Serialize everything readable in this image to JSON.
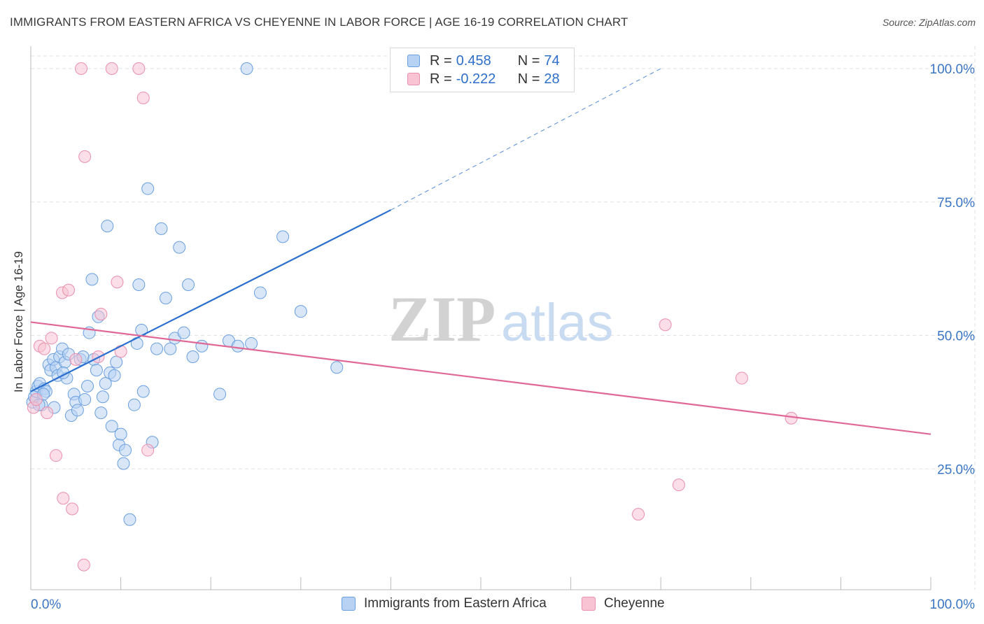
{
  "title": "IMMIGRANTS FROM EASTERN AFRICA VS CHEYENNE IN LABOR FORCE | AGE 16-19 CORRELATION CHART",
  "source": "Source: ZipAtlas.com",
  "watermark": {
    "zip": "ZIP",
    "atlas": "atlas"
  },
  "legend": {
    "rows": [
      {
        "r_label": "R = ",
        "r_value": "0.458",
        "n_label": "N = ",
        "n_value": "74"
      },
      {
        "r_label": "R = ",
        "r_value": "-0.222",
        "n_label": "N = ",
        "n_value": "28"
      }
    ]
  },
  "colors": {
    "series_a_fill": "#b8d2f3",
    "series_a_stroke": "#6a9fdf",
    "series_a_line": "#2a6fd0",
    "series_b_fill": "#f8c3d3",
    "series_b_stroke": "#ea8fac",
    "series_b_line": "#e06896",
    "axis_text": "#3a75c4",
    "grid": "#e2e2e2"
  },
  "chart_data": {
    "type": "scatter",
    "title": "IMMIGRANTS FROM EASTERN AFRICA VS CHEYENNE IN LABOR FORCE | AGE 16-19 CORRELATION CHART",
    "xlabel": "",
    "ylabel": "In Labor Force | Age 16-19",
    "xlim": [
      0,
      100
    ],
    "ylim": [
      0,
      100
    ],
    "x_tick_labels": [
      "0.0%",
      "100.0%"
    ],
    "y_ticks": [
      25,
      50,
      75,
      100
    ],
    "y_tick_labels": [
      "25.0%",
      "50.0%",
      "75.0%",
      "100.0%"
    ],
    "grid": true,
    "legend_position": "top-center",
    "series": [
      {
        "name": "Immigrants from Eastern Africa",
        "r": 0.458,
        "n": 74,
        "trend": {
          "x0": 0,
          "y0": 39.5,
          "x1": 40,
          "y1": 73.5,
          "dashed_to_x": 70,
          "dashed_to_y": 100
        },
        "points": [
          [
            0.2,
            37.5
          ],
          [
            0.4,
            38.5
          ],
          [
            0.6,
            39.5
          ],
          [
            0.8,
            40.5
          ],
          [
            1.0,
            41.0
          ],
          [
            1.2,
            37.0
          ],
          [
            1.5,
            40.0
          ],
          [
            1.7,
            39.5
          ],
          [
            2.0,
            44.5
          ],
          [
            2.2,
            43.5
          ],
          [
            2.5,
            45.5
          ],
          [
            2.8,
            44.0
          ],
          [
            3.0,
            42.5
          ],
          [
            3.2,
            46.0
          ],
          [
            3.5,
            47.5
          ],
          [
            3.8,
            45.0
          ],
          [
            4.0,
            42.0
          ],
          [
            4.2,
            46.5
          ],
          [
            4.5,
            35.0
          ],
          [
            4.8,
            39.0
          ],
          [
            5.0,
            37.5
          ],
          [
            5.2,
            36.0
          ],
          [
            5.5,
            45.5
          ],
          [
            5.8,
            46.0
          ],
          [
            6.0,
            38.0
          ],
          [
            6.3,
            40.5
          ],
          [
            6.5,
            50.5
          ],
          [
            6.8,
            60.5
          ],
          [
            7.0,
            45.5
          ],
          [
            7.3,
            43.5
          ],
          [
            7.5,
            53.5
          ],
          [
            7.8,
            35.5
          ],
          [
            8.0,
            38.5
          ],
          [
            8.3,
            41.0
          ],
          [
            8.5,
            70.5
          ],
          [
            8.8,
            43.0
          ],
          [
            9.0,
            33.0
          ],
          [
            9.3,
            42.5
          ],
          [
            9.5,
            45.0
          ],
          [
            9.8,
            29.5
          ],
          [
            10.0,
            31.5
          ],
          [
            10.3,
            26.0
          ],
          [
            10.5,
            28.5
          ],
          [
            11.0,
            15.5
          ],
          [
            11.5,
            37.0
          ],
          [
            11.8,
            48.5
          ],
          [
            12.0,
            59.5
          ],
          [
            12.3,
            51.0
          ],
          [
            12.5,
            39.5
          ],
          [
            13.0,
            77.5
          ],
          [
            13.5,
            30.0
          ],
          [
            14.0,
            47.5
          ],
          [
            14.5,
            70.0
          ],
          [
            15.0,
            57.0
          ],
          [
            15.5,
            47.5
          ],
          [
            16.0,
            49.5
          ],
          [
            16.5,
            66.5
          ],
          [
            17.0,
            50.5
          ],
          [
            17.5,
            59.5
          ],
          [
            18.0,
            46.0
          ],
          [
            19.0,
            48.0
          ],
          [
            21.0,
            39.0
          ],
          [
            22.0,
            49.0
          ],
          [
            23.0,
            48.0
          ],
          [
            25.5,
            58.0
          ],
          [
            28.0,
            68.5
          ],
          [
            30.0,
            54.5
          ],
          [
            24.5,
            48.5
          ],
          [
            34.0,
            44.0
          ],
          [
            24.0,
            100.0
          ],
          [
            2.6,
            36.5
          ],
          [
            1.4,
            39.0
          ],
          [
            3.6,
            43.0
          ],
          [
            0.9,
            37.0
          ]
        ]
      },
      {
        "name": "Cheyenne",
        "r": -0.222,
        "n": 28,
        "trend": {
          "x0": 0,
          "y0": 52.5,
          "x1": 100,
          "y1": 31.5
        },
        "points": [
          [
            0.3,
            36.5
          ],
          [
            0.6,
            38.0
          ],
          [
            1.0,
            48.0
          ],
          [
            1.5,
            47.5
          ],
          [
            1.8,
            35.5
          ],
          [
            2.3,
            49.5
          ],
          [
            2.8,
            27.5
          ],
          [
            3.5,
            58.0
          ],
          [
            3.6,
            19.5
          ],
          [
            4.2,
            58.5
          ],
          [
            4.6,
            17.5
          ],
          [
            5.0,
            45.5
          ],
          [
            5.6,
            100.0
          ],
          [
            5.9,
            7.0
          ],
          [
            6.0,
            83.5
          ],
          [
            7.5,
            46.0
          ],
          [
            7.8,
            54.0
          ],
          [
            9.0,
            100.0
          ],
          [
            9.6,
            60.0
          ],
          [
            10.0,
            47.0
          ],
          [
            12.0,
            100.0
          ],
          [
            12.5,
            94.5
          ],
          [
            13.0,
            28.5
          ],
          [
            67.5,
            16.5
          ],
          [
            70.5,
            52.0
          ],
          [
            72.0,
            22.0
          ],
          [
            79.0,
            42.0
          ],
          [
            84.5,
            34.5
          ]
        ]
      }
    ]
  }
}
